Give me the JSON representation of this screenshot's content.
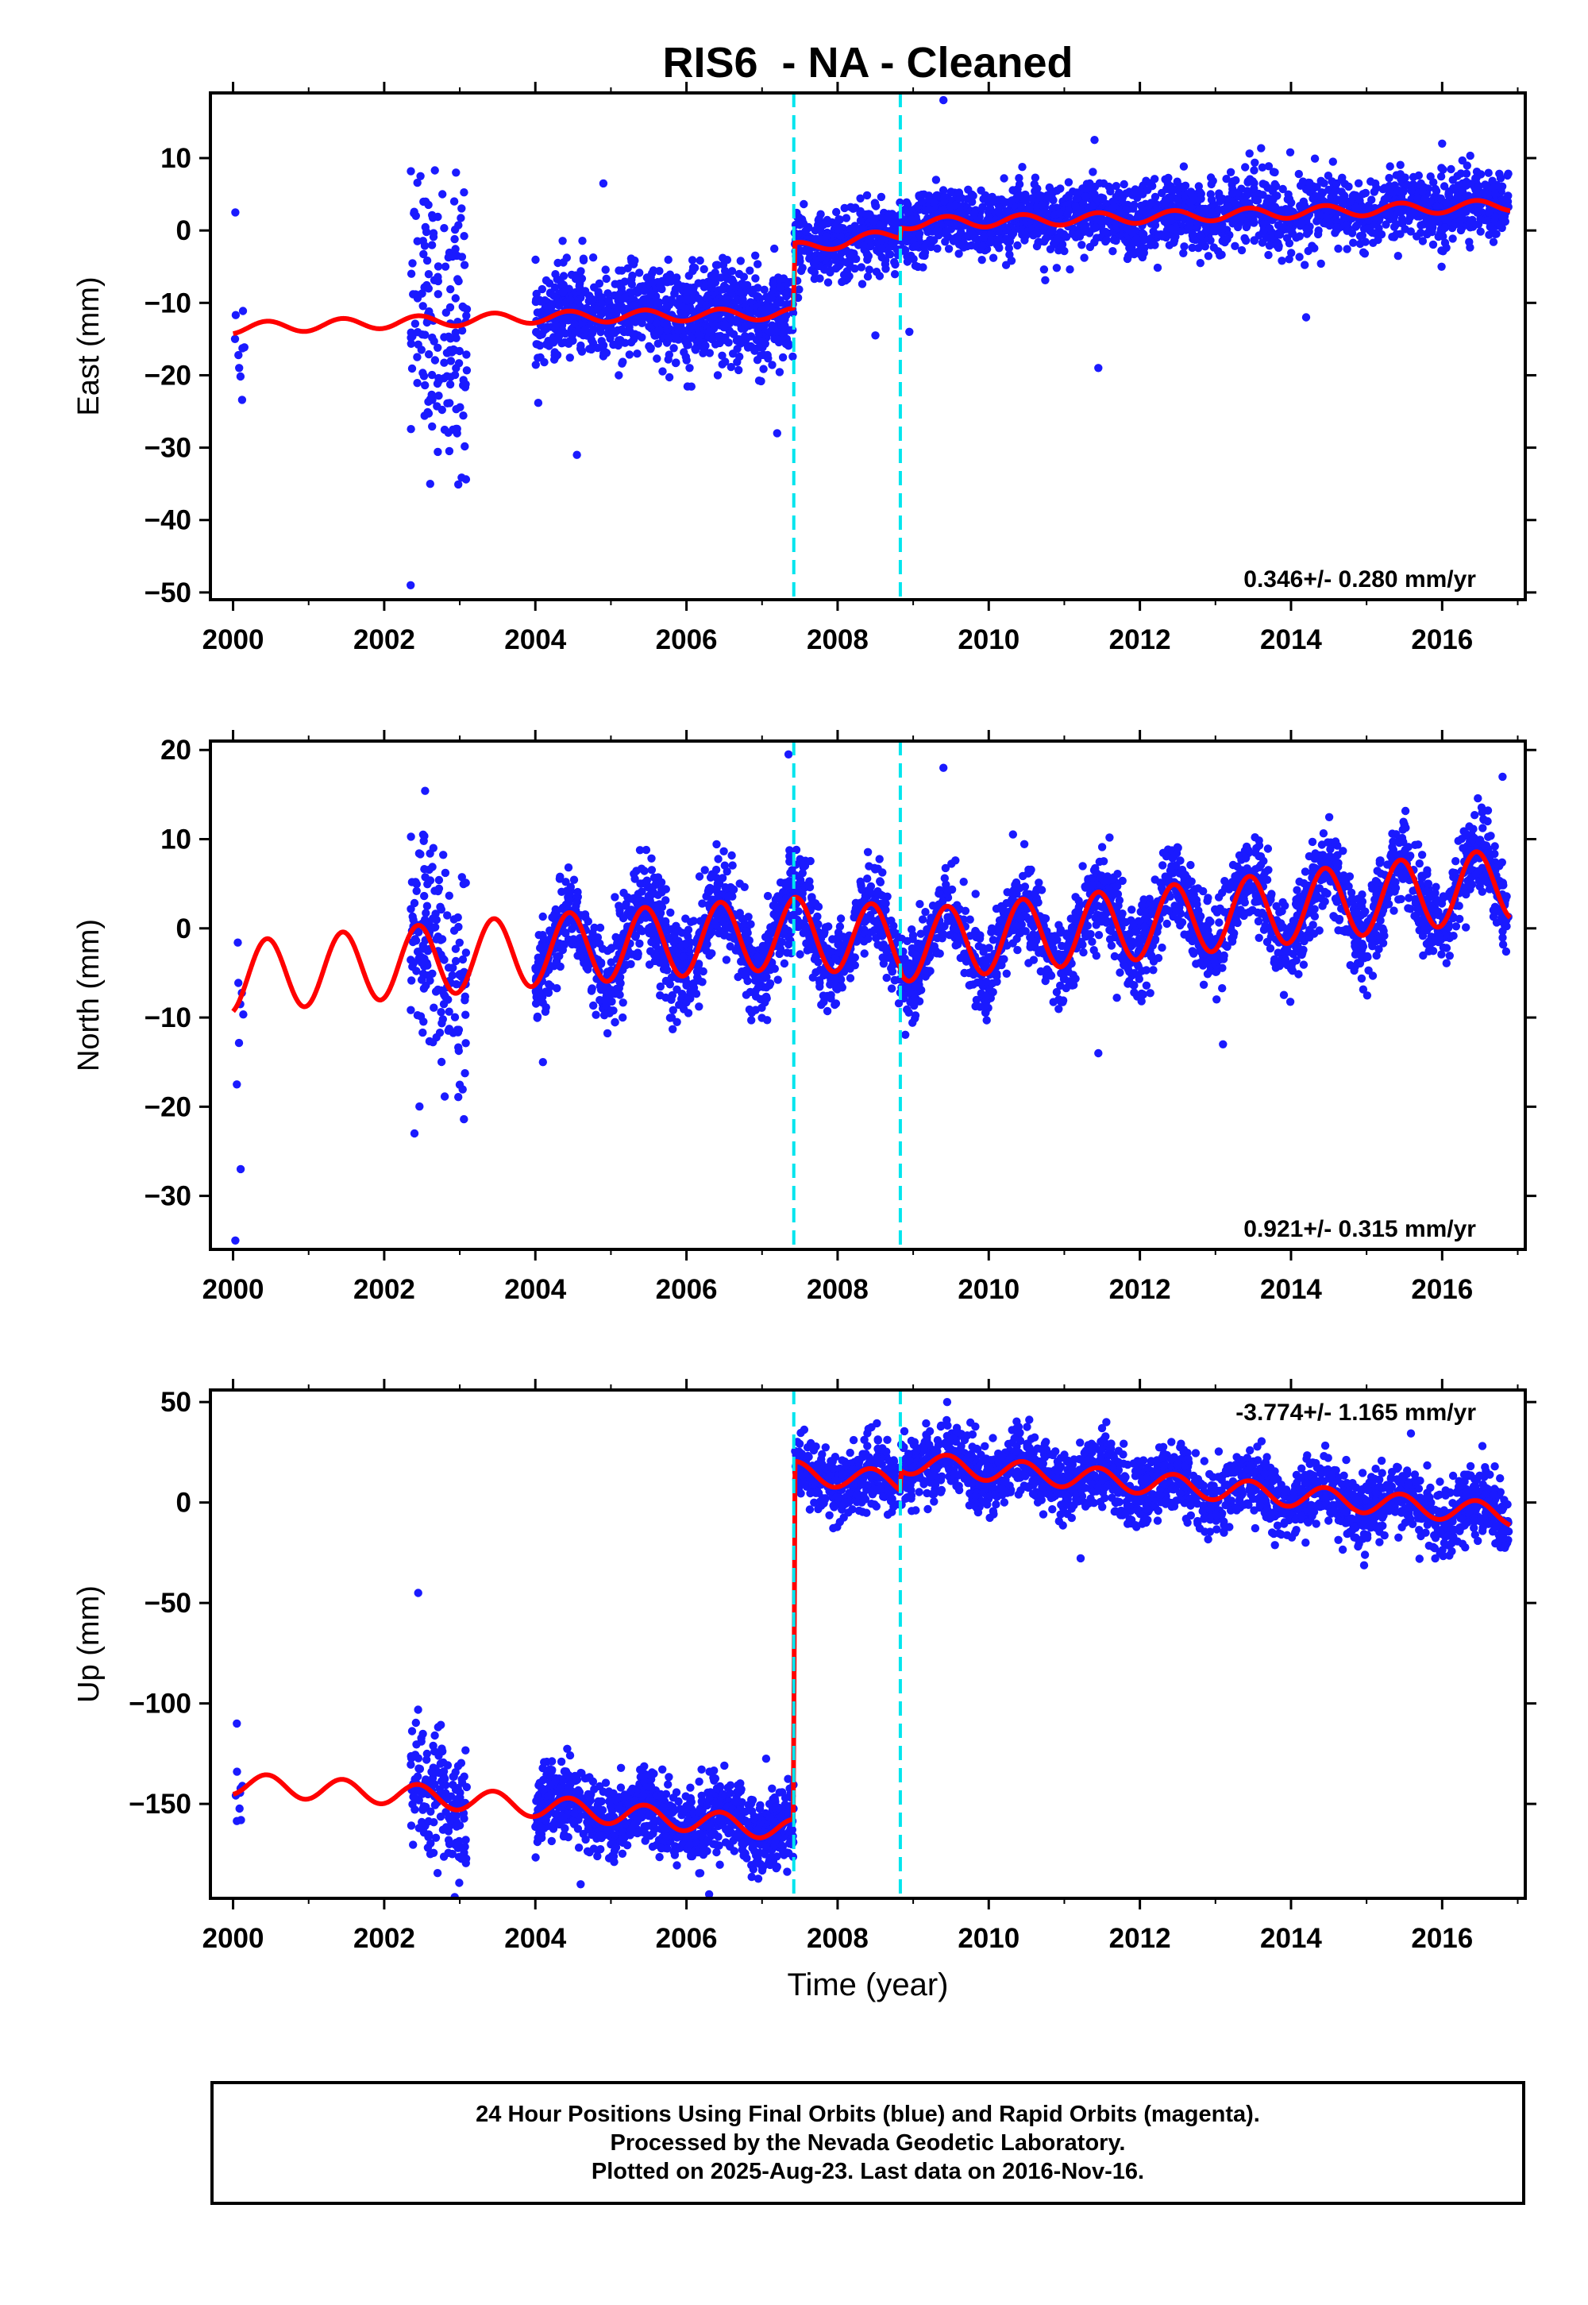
{
  "title": "RIS6  - NA - Cleaned",
  "xlabel": "Time (year)",
  "colors": {
    "points": "#1a1aff",
    "fit": "#ff0000",
    "offsets": "#00e5ee",
    "frame": "#000000"
  },
  "footer": {
    "line1": "24 Hour Positions Using Final Orbits (blue) and Rapid Orbits (magenta).",
    "line2": "Processed by the Nevada Geodetic Laboratory.",
    "line3": "Plotted on 2025-Aug-23. Last data on 2016-Nov-16."
  },
  "chart_data": [
    {
      "type": "scatter",
      "ylabel": "East (mm)",
      "rate_label": "0.346+/- 0.280 mm/yr",
      "xlim": [
        1999.7,
        2017.1
      ],
      "ylim": [
        -51,
        19
      ],
      "xticks": [
        2000,
        2002,
        2004,
        2006,
        2008,
        2010,
        2012,
        2014,
        2016
      ],
      "yticks": [
        -50,
        -40,
        -30,
        -20,
        -10,
        0,
        10
      ],
      "offsets": [
        2007.42,
        2008.83
      ],
      "fit": {
        "anchors": [
          [
            2000.0,
            -13.5
          ],
          [
            2004.0,
            -12.0
          ],
          [
            2007.42,
            -11.5
          ],
          [
            2007.43,
            -2.5
          ],
          [
            2008.83,
            -0.5
          ],
          [
            2008.84,
            1.0
          ],
          [
            2012.0,
            1.8
          ],
          [
            2016.9,
            3.5
          ]
        ],
        "seasonal_amp": 0.8
      },
      "segments": [
        {
          "start": 2000.0,
          "end": 2000.15,
          "n": 8,
          "sigma": 6.0,
          "outliers": [
            [
              2000.03,
              2.5
            ],
            [
              2000.08,
              -19.0
            ]
          ]
        },
        {
          "start": 2002.35,
          "end": 2003.1,
          "n": 160,
          "sigma": 9.5,
          "outliers": [
            [
              2002.35,
              -49.0
            ],
            [
              2002.48,
              7.5
            ],
            [
              2002.95,
              8.0
            ]
          ]
        },
        {
          "start": 2004.0,
          "end": 2007.42,
          "n": 1000,
          "sigma": 3.2,
          "outliers": [
            [
              2004.55,
              -31.0
            ],
            [
              2004.9,
              6.5
            ],
            [
              2007.2,
              -28.0
            ]
          ]
        },
        {
          "start": 2007.43,
          "end": 2008.83,
          "n": 350,
          "sigma": 2.3,
          "outliers": [
            [
              2008.5,
              -14.5
            ]
          ]
        },
        {
          "start": 2008.84,
          "end": 2016.88,
          "n": 2000,
          "sigma": 2.4,
          "outliers": [
            [
              2008.95,
              -14.0
            ],
            [
              2009.4,
              18.0
            ],
            [
              2011.4,
              12.5
            ],
            [
              2011.45,
              -19.0
            ],
            [
              2014.2,
              -12.0
            ],
            [
              2016.0,
              12.0
            ]
          ]
        }
      ]
    },
    {
      "type": "scatter",
      "ylabel": "North (mm)",
      "rate_label": "0.921+/- 0.315 mm/yr",
      "xlim": [
        1999.7,
        2017.1
      ],
      "ylim": [
        -36,
        21
      ],
      "xticks": [
        2000,
        2002,
        2004,
        2006,
        2008,
        2010,
        2012,
        2014,
        2016
      ],
      "yticks": [
        -30,
        -20,
        -10,
        0,
        10,
        20
      ],
      "offsets": [
        2007.42,
        2008.83
      ],
      "fit": {
        "anchors": [
          [
            2000.0,
            -5.5
          ],
          [
            2004.0,
            -2.5
          ],
          [
            2007.42,
            -0.5
          ],
          [
            2007.43,
            -0.5
          ],
          [
            2008.83,
            -1.5
          ],
          [
            2008.84,
            -2.0
          ],
          [
            2012.0,
            0.5
          ],
          [
            2016.9,
            5.0
          ]
        ],
        "seasonal_amp": 4.0
      },
      "segments": [
        {
          "start": 2000.0,
          "end": 2000.15,
          "n": 6,
          "sigma": 5.0,
          "outliers": [
            [
              2000.03,
              -35.0
            ],
            [
              2000.05,
              -17.5
            ],
            [
              2000.1,
              -27.0
            ]
          ]
        },
        {
          "start": 2002.35,
          "end": 2003.1,
          "n": 160,
          "sigma": 6.5,
          "outliers": [
            [
              2002.4,
              -23.0
            ],
            [
              2002.65,
              9.0
            ]
          ]
        },
        {
          "start": 2004.0,
          "end": 2007.42,
          "n": 1000,
          "sigma": 2.6,
          "outliers": [
            [
              2004.1,
              -15.0
            ],
            [
              2007.35,
              19.5
            ]
          ]
        },
        {
          "start": 2007.43,
          "end": 2008.83,
          "n": 350,
          "sigma": 2.4,
          "outliers": []
        },
        {
          "start": 2008.84,
          "end": 2016.88,
          "n": 2000,
          "sigma": 2.4,
          "outliers": [
            [
              2009.4,
              18.0
            ],
            [
              2011.45,
              -14.0
            ],
            [
              2013.1,
              -13.0
            ],
            [
              2016.8,
              17.0
            ]
          ]
        }
      ]
    },
    {
      "type": "scatter",
      "ylabel": "Up (mm)",
      "rate_label": "-3.774+/- 1.165 mm/yr",
      "xlim": [
        1999.7,
        2017.1
      ],
      "ylim": [
        -197,
        56
      ],
      "xticks": [
        2000,
        2002,
        2004,
        2006,
        2008,
        2010,
        2012,
        2014,
        2016
      ],
      "yticks": [
        -150,
        -100,
        -50,
        0,
        50
      ],
      "offsets": [
        2007.42,
        2008.83
      ],
      "fit": {
        "anchors": [
          [
            2000.0,
            -140.0
          ],
          [
            2002.2,
            -145.0
          ],
          [
            2004.0,
            -151.0
          ],
          [
            2007.42,
            -163.0
          ],
          [
            2007.43,
            15.0
          ],
          [
            2008.83,
            10.0
          ],
          [
            2008.84,
            20.0
          ],
          [
            2012.0,
            10.0
          ],
          [
            2016.9,
            -6.0
          ]
        ],
        "seasonal_amp": 5.5
      },
      "segments": [
        {
          "start": 2000.0,
          "end": 2000.15,
          "n": 8,
          "sigma": 10.0,
          "outliers": [
            [
              2000.05,
              -110.0
            ]
          ]
        },
        {
          "start": 2002.35,
          "end": 2003.1,
          "n": 160,
          "sigma": 16.0,
          "outliers": [
            [
              2002.45,
              -45.0
            ],
            [
              2002.9,
              -175.0
            ]
          ]
        },
        {
          "start": 2004.0,
          "end": 2007.42,
          "n": 1000,
          "sigma": 9.0,
          "outliers": [
            [
              2004.6,
              -190.0
            ],
            [
              2006.3,
              -195.0
            ]
          ]
        },
        {
          "start": 2007.43,
          "end": 2008.83,
          "n": 350,
          "sigma": 8.0,
          "outliers": []
        },
        {
          "start": 2008.84,
          "end": 2016.88,
          "n": 2000,
          "sigma": 8.5,
          "outliers": [
            [
              2009.45,
              50.0
            ],
            [
              2011.5,
              37.0
            ],
            [
              2015.7,
              -28.0
            ]
          ]
        }
      ]
    }
  ]
}
